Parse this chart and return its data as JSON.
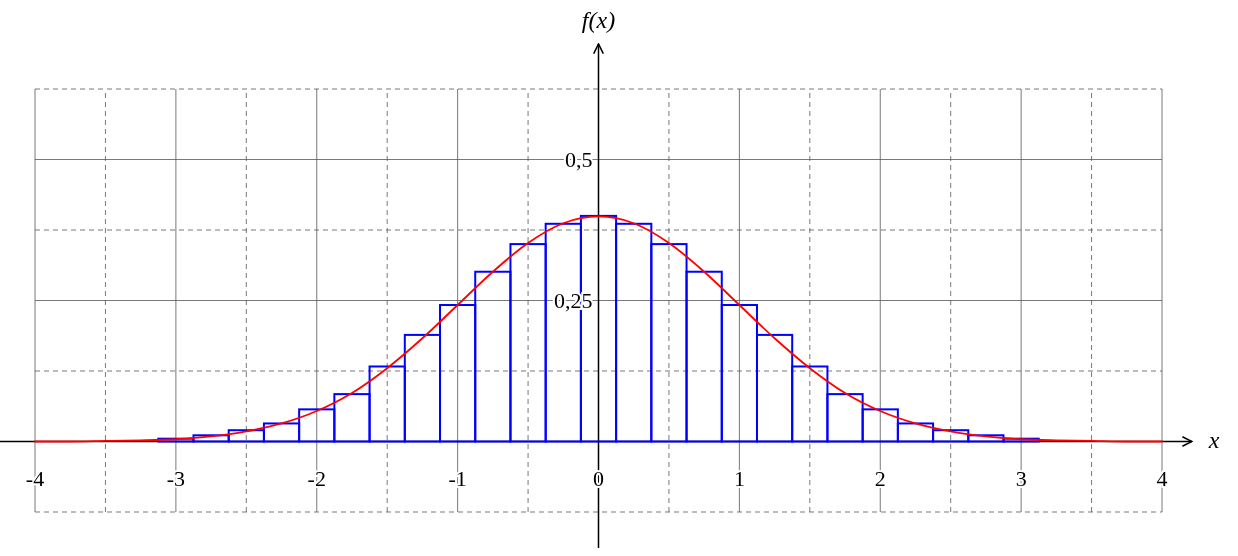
{
  "chart_data": {
    "type": "histogram",
    "xlabel": "x",
    "ylabel": "f(x)",
    "xlim": [
      -4,
      4
    ],
    "ylim": [
      -0.125,
      0.625
    ],
    "xticks": [
      -4,
      {
        "value": -3.5,
        "label": null
      },
      -3,
      {
        "value": -2.5,
        "label": null
      },
      -2,
      {
        "value": -1.5,
        "label": null
      },
      -1,
      {
        "value": -0.5,
        "label": null
      },
      0,
      {
        "value": 0.5,
        "label": null
      },
      1,
      {
        "value": 1.5,
        "label": null
      },
      2,
      {
        "value": 2.5,
        "label": null
      },
      3,
      {
        "value": 3.5,
        "label": null
      },
      4
    ],
    "yticks": [
      {
        "value": -0.125,
        "label": null
      },
      {
        "value": 0.125,
        "label": null
      },
      {
        "value": 0.25,
        "label": "0,25"
      },
      {
        "value": 0.375,
        "label": null
      },
      {
        "value": 0.5,
        "label": "0,5"
      },
      {
        "value": 0.625,
        "label": null
      }
    ],
    "grid": true,
    "series": [
      {
        "color": "#0000ff",
        "bins": [
          -3.125,
          -2.875,
          -2.625,
          -2.375,
          -2.125,
          -1.875,
          -1.625,
          -1.375,
          -1.125,
          -0.875,
          -0.625,
          -0.375,
          -0.125,
          0.125,
          0.375,
          0.625,
          0.875,
          1.125,
          1.375,
          1.625,
          1.875,
          2.125,
          2.375,
          2.625,
          2.875,
          3.125
        ],
        "values": [
          0.005,
          0.011,
          0.02,
          0.032,
          0.057,
          0.084,
          0.133,
          0.189,
          0.242,
          0.301,
          0.35,
          0.386,
          0.4,
          0.386,
          0.35,
          0.301,
          0.242,
          0.189,
          0.133,
          0.084,
          0.057,
          0.032,
          0.02,
          0.011,
          0.005
        ]
      },
      {
        "type": "line",
        "color": "#ff0000",
        "x": [
          -4,
          -3.75,
          -3.5,
          -3.25,
          -3,
          -2.75,
          -2.5,
          -2.25,
          -2,
          -1.75,
          -1.5,
          -1.25,
          -1,
          -0.75,
          -0.5,
          -0.25,
          0,
          0.25,
          0.5,
          0.75,
          1,
          1.25,
          1.5,
          1.75,
          2,
          2.25,
          2.5,
          2.75,
          3,
          3.25,
          3.5,
          3.75,
          4
        ],
        "values": [
          0,
          0,
          0.001,
          0.002,
          0.004,
          0.009,
          0.018,
          0.032,
          0.054,
          0.086,
          0.13,
          0.183,
          0.242,
          0.301,
          0.352,
          0.387,
          0.399,
          0.387,
          0.352,
          0.301,
          0.242,
          0.183,
          0.13,
          0.086,
          0.054,
          0.032,
          0.018,
          0.009,
          0.004,
          0.002,
          0.001,
          0,
          0
        ]
      }
    ]
  }
}
